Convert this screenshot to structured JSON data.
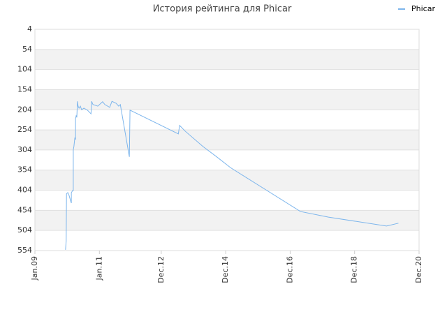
{
  "chart_data": {
    "type": "line",
    "title": "История рейтинга для Phicar",
    "x": [
      2009.95,
      2009.97,
      2009.98,
      2010.02,
      2010.06,
      2010.11,
      2010.13,
      2010.13,
      2010.17,
      2010.19,
      2010.19,
      2010.21,
      2010.24,
      2010.26,
      2010.26,
      2010.28,
      2010.3,
      2010.32,
      2010.34,
      2010.37,
      2010.41,
      2010.45,
      2010.52,
      2010.63,
      2010.74,
      2010.76,
      2010.8,
      2010.95,
      2011.1,
      2011.17,
      2011.32,
      2011.39,
      2011.52,
      2011.6,
      2011.65,
      2011.93,
      2011.95,
      2013.45,
      2013.49,
      2013.66,
      2014.21,
      2014.64,
      2015.07,
      2017.24,
      2018.11,
      2019.91,
      2020.28
    ],
    "series": [
      {
        "name": "Phicar",
        "color": "#7cb5ec",
        "values": [
          552,
          530,
          413,
          410,
          417,
          431,
          436,
          410,
          405,
          405,
          304,
          295,
          273,
          278,
          226,
          219,
          223,
          183,
          195,
          200,
          195,
          204,
          200,
          205,
          214,
          183,
          191,
          195,
          184,
          191,
          198,
          183,
          188,
          195,
          191,
          321,
          205,
          264,
          243,
          257,
          295,
          321,
          348,
          457,
          471,
          493,
          486
        ]
      }
    ],
    "xlim": [
      2009.0,
      2020.92
    ],
    "xticks": [
      {
        "value": 2009.0,
        "label": "Jan.09"
      },
      {
        "value": 2011.0,
        "label": "Jan.11"
      },
      {
        "value": 2012.92,
        "label": "Dec.12"
      },
      {
        "value": 2014.92,
        "label": "Dec.14"
      },
      {
        "value": 2016.92,
        "label": "Dec.16"
      },
      {
        "value": 2018.92,
        "label": "Dec.18"
      },
      {
        "value": 2020.92,
        "label": "Dec.20"
      }
    ],
    "ylim": [
      554,
      4
    ],
    "yticks": [
      4,
      54,
      104,
      154,
      204,
      254,
      304,
      354,
      404,
      454,
      504,
      554
    ],
    "grid": true,
    "legend": "top-right"
  }
}
